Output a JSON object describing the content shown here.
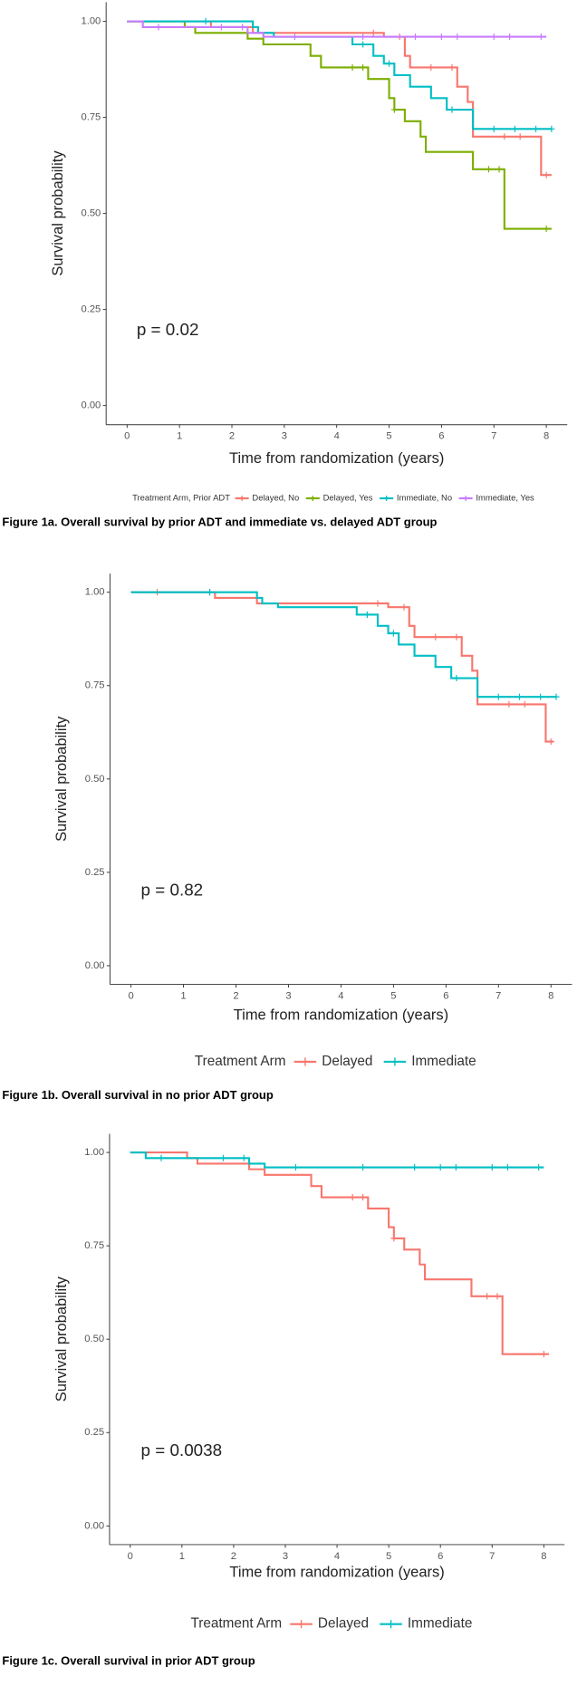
{
  "chart_data": [
    {
      "type": "line",
      "step": true,
      "y_label": "Survival probability",
      "x_label": "Time from randomization (years)",
      "annotation": "p = 0.02",
      "legend_title": "Treatment Arm, Prior ADT",
      "caption": "Figure 1a. Overall survival by prior ADT and immediate vs. delayed ADT group",
      "xlim": [
        -0.4,
        8.4
      ],
      "ylim": [
        -0.05,
        1.05
      ],
      "xticks": [
        0,
        1,
        2,
        3,
        4,
        5,
        6,
        7,
        8
      ],
      "yticks": [
        {
          "value": 0,
          "label": "0.00"
        },
        {
          "value": 0.25,
          "label": "0.25"
        },
        {
          "value": 0.5,
          "label": "0.50"
        },
        {
          "value": 0.75,
          "label": "0.75"
        },
        {
          "value": 1,
          "label": "1.00"
        }
      ],
      "series": [
        {
          "name": "Delayed, No",
          "color": "#F8766D",
          "x": [
            0,
            1.6,
            2.4,
            4.9,
            5.3,
            5.4,
            6.3,
            6.5,
            6.6,
            7.9,
            8.1
          ],
          "values": [
            1,
            0.985,
            0.97,
            0.96,
            0.91,
            0.88,
            0.83,
            0.79,
            0.7,
            0.6,
            0.6
          ],
          "censor_x": [
            4.7,
            5.2,
            5.8,
            6.2,
            7.2,
            7.5,
            8.0
          ]
        },
        {
          "name": "Delayed, Yes",
          "color": "#7CAE00",
          "x": [
            0,
            1.1,
            1.3,
            2.3,
            2.6,
            3.5,
            3.7,
            4.6,
            5.0,
            5.1,
            5.3,
            5.6,
            5.7,
            6.6,
            7.2,
            8.1
          ],
          "values": [
            1,
            0.985,
            0.97,
            0.955,
            0.94,
            0.91,
            0.88,
            0.85,
            0.8,
            0.77,
            0.74,
            0.7,
            0.66,
            0.615,
            0.46,
            0.46
          ],
          "censor_x": [
            4.3,
            4.5,
            5.1,
            6.9,
            7.1,
            8.0
          ]
        },
        {
          "name": "Immediate, No",
          "color": "#00BFC4",
          "x": [
            0,
            2.4,
            2.5,
            2.8,
            4.3,
            4.7,
            4.9,
            5.1,
            5.4,
            5.8,
            6.1,
            6.6,
            8.1
          ],
          "values": [
            1,
            0.985,
            0.97,
            0.96,
            0.94,
            0.91,
            0.89,
            0.86,
            0.83,
            0.8,
            0.77,
            0.72,
            0.72
          ],
          "censor_x": [
            1.5,
            4.5,
            5.0,
            6.2,
            7.0,
            7.4,
            7.8,
            8.1
          ]
        },
        {
          "name": "Immediate, Yes",
          "color": "#C77CFF",
          "x": [
            0,
            0.3,
            2.3,
            2.6,
            8.0
          ],
          "values": [
            1,
            0.985,
            0.97,
            0.96,
            0.96
          ],
          "censor_x": [
            0.6,
            1.8,
            2.2,
            3.2,
            4.5,
            5.5,
            6.0,
            6.3,
            7.0,
            7.3,
            7.9
          ]
        }
      ]
    },
    {
      "type": "line",
      "step": true,
      "y_label": "Survival probability",
      "x_label": "Time from randomization (years)",
      "annotation": "p = 0.82",
      "legend_title": "Treatment Arm",
      "caption": "Figure 1b. Overall survival in no prior ADT group",
      "xlim": [
        -0.4,
        8.4
      ],
      "ylim": [
        -0.05,
        1.05
      ],
      "xticks": [
        0,
        1,
        2,
        3,
        4,
        5,
        6,
        7,
        8
      ],
      "yticks": [
        {
          "value": 0,
          "label": "0.00"
        },
        {
          "value": 0.25,
          "label": "0.25"
        },
        {
          "value": 0.5,
          "label": "0.50"
        },
        {
          "value": 0.75,
          "label": "0.75"
        },
        {
          "value": 1,
          "label": "1.00"
        }
      ],
      "series": [
        {
          "name": "Delayed",
          "color": "#F8766D",
          "x": [
            0,
            1.6,
            2.4,
            4.9,
            5.3,
            5.4,
            6.3,
            6.5,
            6.6,
            7.9,
            8.05
          ],
          "values": [
            1,
            0.985,
            0.97,
            0.96,
            0.91,
            0.88,
            0.83,
            0.79,
            0.7,
            0.6,
            0.6
          ],
          "censor_x": [
            0.5,
            1.5,
            4.7,
            5.2,
            5.8,
            6.2,
            7.2,
            7.5,
            8.0
          ]
        },
        {
          "name": "Immediate",
          "color": "#00BFC4",
          "x": [
            0,
            2.4,
            2.5,
            2.8,
            4.3,
            4.7,
            4.9,
            5.1,
            5.4,
            5.8,
            6.1,
            6.6,
            8.1
          ],
          "values": [
            1,
            0.985,
            0.97,
            0.96,
            0.94,
            0.91,
            0.89,
            0.86,
            0.83,
            0.8,
            0.77,
            0.72,
            0.72
          ],
          "censor_x": [
            1.5,
            4.5,
            5.0,
            6.2,
            7.0,
            7.4,
            7.8,
            8.1
          ]
        }
      ]
    },
    {
      "type": "line",
      "step": true,
      "y_label": "Survival probability",
      "x_label": "Time from randomization (years)",
      "annotation": "p = 0.0038",
      "legend_title": "Treatment Arm",
      "caption": "Figure 1c. Overall survival in prior ADT group",
      "xlim": [
        -0.4,
        8.4
      ],
      "ylim": [
        -0.05,
        1.05
      ],
      "xticks": [
        0,
        1,
        2,
        3,
        4,
        5,
        6,
        7,
        8
      ],
      "yticks": [
        {
          "value": 0,
          "label": "0.00"
        },
        {
          "value": 0.25,
          "label": "0.25"
        },
        {
          "value": 0.5,
          "label": "0.50"
        },
        {
          "value": 0.75,
          "label": "0.75"
        },
        {
          "value": 1,
          "label": "1.00"
        }
      ],
      "series": [
        {
          "name": "Delayed",
          "color": "#F8766D",
          "x": [
            0,
            1.1,
            1.3,
            2.3,
            2.6,
            3.5,
            3.7,
            4.6,
            5.0,
            5.1,
            5.3,
            5.6,
            5.7,
            6.6,
            7.2,
            8.1
          ],
          "values": [
            1,
            0.985,
            0.97,
            0.955,
            0.94,
            0.91,
            0.88,
            0.85,
            0.8,
            0.77,
            0.74,
            0.7,
            0.66,
            0.615,
            0.46,
            0.46
          ],
          "censor_x": [
            4.3,
            4.5,
            5.1,
            6.9,
            7.1,
            8.0
          ]
        },
        {
          "name": "Immediate",
          "color": "#00BFC4",
          "x": [
            0,
            0.3,
            2.3,
            2.6,
            8.0
          ],
          "values": [
            1,
            0.985,
            0.97,
            0.96,
            0.96
          ],
          "censor_x": [
            0.6,
            1.8,
            2.2,
            3.2,
            4.5,
            5.5,
            6.0,
            6.3,
            7.0,
            7.3,
            7.9
          ]
        }
      ]
    }
  ]
}
